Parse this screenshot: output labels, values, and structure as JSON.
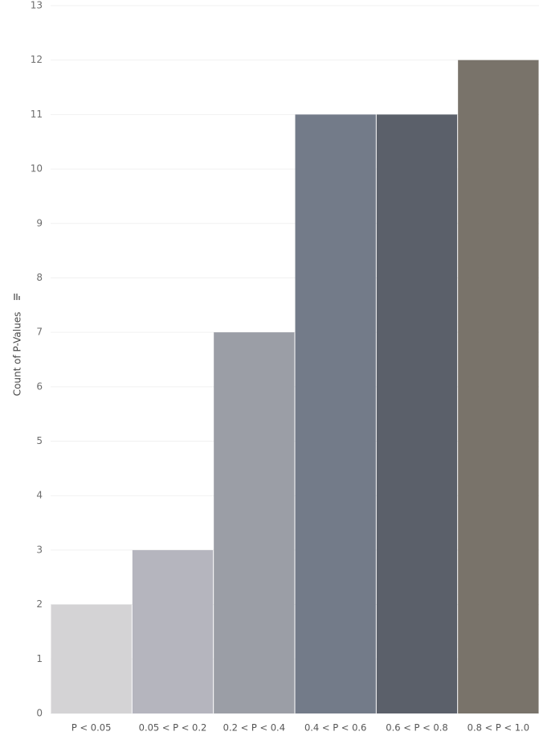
{
  "chart_data": {
    "type": "bar",
    "categories": [
      "P < 0.05",
      "0.05 < P < 0.2",
      "0.2 < P < 0.4",
      "0.4 < P < 0.6",
      "0.6 < P < 0.8",
      "0.8 < P < 1.0"
    ],
    "values": [
      2,
      3,
      7,
      11,
      11,
      12
    ],
    "colors": [
      "#d4d3d5",
      "#b5b5be",
      "#9b9ea6",
      "#737b89",
      "#5b606a",
      "#79736a"
    ],
    "title": "",
    "xlabel": "",
    "ylabel": "Count of P-Values",
    "ylim": [
      0,
      13
    ],
    "yticks": [
      "0",
      "1",
      "2",
      "3",
      "4",
      "5",
      "6",
      "7",
      "8",
      "9",
      "10",
      "11",
      "12",
      "13"
    ],
    "grid": true,
    "gridline_color": "#f1f1f1",
    "sort_icon": "sort-descending-icon"
  }
}
